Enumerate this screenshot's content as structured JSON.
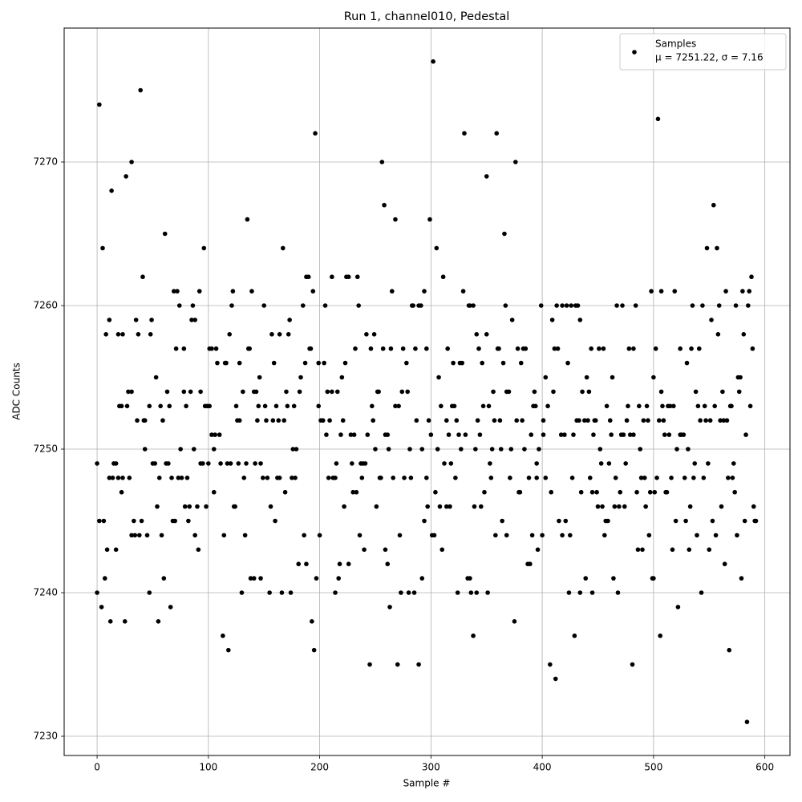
{
  "chart_data": {
    "type": "scatter",
    "title": "Run 1, channel010, Pedestal",
    "x_label": "Sample #",
    "y_label": "ADC Counts",
    "xlim": [
      -29.6,
      622.6
    ],
    "ylim": [
      7228.66,
      7279.33
    ],
    "xticks": [
      0,
      100,
      200,
      300,
      400,
      500,
      600
    ],
    "yticks": [
      7230,
      7240,
      7250,
      7260,
      7270
    ],
    "grid": true,
    "legend_position": "upper right",
    "legend_note": "μ = 7251.22, σ = 7.16",
    "series": [
      {
        "name": "Samples",
        "color": "#000000",
        "x": [
          0,
          0,
          2,
          2,
          4,
          5,
          6,
          7,
          8,
          9,
          11,
          11,
          12,
          13,
          14,
          15,
          17,
          17,
          19,
          19,
          20,
          22,
          22,
          23,
          23,
          25,
          26,
          27,
          28,
          29,
          31,
          31,
          31,
          33,
          34,
          35,
          36,
          37,
          38,
          39,
          40,
          41,
          42,
          43,
          43,
          45,
          47,
          47,
          48,
          49,
          50,
          52,
          53,
          54,
          55,
          56,
          57,
          58,
          59,
          60,
          61,
          62,
          63,
          64,
          65,
          66,
          67,
          68,
          69,
          70,
          71,
          72,
          73,
          74,
          75,
          76,
          78,
          78,
          79,
          80,
          81,
          82,
          83,
          84,
          85,
          86,
          87,
          88,
          88,
          90,
          91,
          92,
          93,
          93,
          95,
          96,
          97,
          98,
          99,
          100,
          101,
          101,
          103,
          103,
          105,
          105,
          106,
          107,
          108,
          110,
          111,
          113,
          114,
          115,
          116,
          117,
          118,
          119,
          120,
          121,
          122,
          123,
          124,
          125,
          126,
          127,
          128,
          128,
          130,
          131,
          132,
          133,
          134,
          135,
          136,
          137,
          138,
          139,
          141,
          141,
          142,
          143,
          144,
          145,
          146,
          147,
          147,
          149,
          150,
          151,
          152,
          153,
          155,
          156,
          157,
          158,
          159,
          160,
          161,
          162,
          163,
          164,
          164,
          166,
          167,
          168,
          169,
          170,
          171,
          172,
          173,
          174,
          175,
          176,
          177,
          178,
          179,
          181,
          182,
          183,
          185,
          186,
          187,
          188,
          188,
          190,
          191,
          192,
          193,
          194,
          195,
          196,
          197,
          199,
          199,
          200,
          201,
          203,
          204,
          205,
          206,
          207,
          208,
          209,
          211,
          211,
          212,
          214,
          214,
          215,
          216,
          217,
          218,
          219,
          220,
          221,
          222,
          223,
          224,
          226,
          226,
          228,
          229,
          230,
          231,
          232,
          233,
          234,
          235,
          236,
          237,
          238,
          239,
          240,
          241,
          242,
          243,
          245,
          246,
          247,
          248,
          249,
          250,
          251,
          252,
          253,
          254,
          255,
          256,
          257,
          258,
          259,
          259,
          261,
          261,
          262,
          263,
          264,
          265,
          266,
          268,
          268,
          270,
          271,
          272,
          273,
          274,
          275,
          276,
          278,
          279,
          280,
          281,
          282,
          283,
          284,
          285,
          286,
          287,
          289,
          289,
          291,
          292,
          292,
          294,
          294,
          296,
          296,
          297,
          298,
          299,
          300,
          301,
          302,
          303,
          304,
          305,
          306,
          307,
          308,
          309,
          310,
          311,
          312,
          314,
          314,
          315,
          316,
          317,
          318,
          319,
          320,
          321,
          322,
          323,
          324,
          325,
          326,
          327,
          328,
          329,
          330,
          331,
          333,
          334,
          335,
          335,
          336,
          338,
          338,
          339,
          340,
          341,
          341,
          342,
          343,
          344,
          345,
          346,
          347,
          348,
          350,
          350,
          351,
          352,
          353,
          354,
          355,
          356,
          357,
          358,
          359,
          360,
          361,
          362,
          363,
          364,
          365,
          366,
          367,
          368,
          368,
          370,
          371,
          372,
          373,
          375,
          376,
          377,
          378,
          379,
          380,
          381,
          382,
          383,
          384,
          385,
          387,
          388,
          389,
          390,
          391,
          392,
          393,
          394,
          395,
          395,
          396,
          397,
          399,
          400,
          401,
          401,
          403,
          403,
          405,
          407,
          408,
          409,
          410,
          411,
          412,
          413,
          414,
          415,
          417,
          418,
          418,
          420,
          421,
          422,
          423,
          424,
          425,
          426,
          427,
          428,
          429,
          430,
          431,
          432,
          433,
          434,
          434,
          435,
          436,
          438,
          439,
          440,
          441,
          442,
          443,
          444,
          445,
          445,
          446,
          447,
          448,
          449,
          450,
          451,
          452,
          453,
          454,
          455,
          456,
          457,
          458,
          459,
          460,
          461,
          462,
          463,
          464,
          465,
          466,
          467,
          468,
          469,
          470,
          471,
          472,
          473,
          474,
          475,
          476,
          477,
          478,
          479,
          481,
          482,
          482,
          484,
          485,
          486,
          487,
          488,
          489,
          490,
          491,
          492,
          493,
          494,
          495,
          496,
          497,
          498,
          499,
          500,
          500,
          501,
          502,
          503,
          504,
          505,
          506,
          507,
          507,
          508,
          509,
          510,
          511,
          512,
          513,
          514,
          515,
          516,
          517,
          518,
          519,
          520,
          521,
          522,
          524,
          524,
          525,
          527,
          528,
          529,
          530,
          531,
          532,
          533,
          534,
          535,
          536,
          537,
          538,
          539,
          540,
          541,
          542,
          543,
          544,
          545,
          546,
          547,
          548,
          549,
          550,
          551,
          552,
          553,
          554,
          555,
          556,
          557,
          558,
          559,
          560,
          561,
          562,
          563,
          564,
          565,
          566,
          567,
          568,
          569,
          570,
          571,
          572,
          573,
          574,
          575,
          576,
          577,
          578,
          579,
          580,
          581,
          582,
          583,
          584,
          585,
          586,
          587,
          588,
          589,
          590,
          591,
          592
        ],
        "values": [
          7240,
          7249,
          7274,
          7245,
          7239,
          7264,
          7245,
          7241,
          7258,
          7243,
          7259,
          7248,
          7238,
          7268,
          7248,
          7249,
          7249,
          7243,
          7258,
          7248,
          7253,
          7247,
          7253,
          7248,
          7258,
          7238,
          7269,
          7253,
          7254,
          7248,
          7270,
          7254,
          7244,
          7245,
          7244,
          7259,
          7252,
          7258,
          7244,
          7275,
          7245,
          7262,
          7252,
          7252,
          7250,
          7244,
          7240,
          7253,
          7258,
          7259,
          7249,
          7249,
          7255,
          7246,
          7238,
          7248,
          7253,
          7244,
          7252,
          7241,
          7265,
          7249,
          7254,
          7249,
          7253,
          7239,
          7248,
          7245,
          7261,
          7245,
          7257,
          7261,
          7248,
          7260,
          7250,
          7248,
          7254,
          7257,
          7246,
          7253,
          7248,
          7245,
          7246,
          7254,
          7259,
          7260,
          7250,
          7259,
          7244,
          7246,
          7243,
          7261,
          7254,
          7249,
          7249,
          7264,
          7253,
          7246,
          7253,
          7249,
          7253,
          7257,
          7257,
          7251,
          7247,
          7250,
          7251,
          7257,
          7256,
          7251,
          7249,
          7237,
          7244,
          7256,
          7256,
          7249,
          7236,
          7258,
          7249,
          7260,
          7261,
          7246,
          7246,
          7253,
          7252,
          7249,
          7256,
          7252,
          7240,
          7254,
          7248,
          7244,
          7249,
          7266,
          7257,
          7257,
          7241,
          7261,
          7241,
          7254,
          7249,
          7254,
          7252,
          7253,
          7255,
          7249,
          7241,
          7248,
          7260,
          7253,
          7252,
          7248,
          7240,
          7246,
          7258,
          7252,
          7256,
          7245,
          7253,
          7248,
          7252,
          7258,
          7248,
          7240,
          7264,
          7252,
          7247,
          7254,
          7253,
          7258,
          7259,
          7240,
          7248,
          7250,
          7253,
          7248,
          7250,
          7242,
          7254,
          7255,
          7260,
          7244,
          7256,
          7242,
          7262,
          7262,
          7257,
          7257,
          7238,
          7261,
          7236,
          7272,
          7241,
          7253,
          7256,
          7244,
          7252,
          7252,
          7256,
          7260,
          7251,
          7254,
          7248,
          7252,
          7262,
          7254,
          7248,
          7248,
          7240,
          7249,
          7254,
          7241,
          7242,
          7251,
          7255,
          7252,
          7246,
          7256,
          7262,
          7242,
          7262,
          7251,
          7249,
          7247,
          7251,
          7257,
          7247,
          7262,
          7260,
          7244,
          7249,
          7248,
          7249,
          7243,
          7249,
          7258,
          7251,
          7235,
          7257,
          7253,
          7252,
          7258,
          7250,
          7246,
          7254,
          7254,
          7248,
          7248,
          7270,
          7257,
          7267,
          7243,
          7251,
          7242,
          7251,
          7250,
          7239,
          7257,
          7261,
          7248,
          7266,
          7253,
          7235,
          7253,
          7244,
          7240,
          7254,
          7257,
          7248,
          7256,
          7254,
          7240,
          7250,
          7248,
          7260,
          7260,
          7240,
          7257,
          7252,
          7235,
          7260,
          7260,
          7250,
          7241,
          7245,
          7261,
          7257,
          7248,
          7246,
          7252,
          7266,
          7251,
          7244,
          7277,
          7244,
          7247,
          7264,
          7250,
          7255,
          7246,
          7253,
          7243,
          7262,
          7249,
          7252,
          7246,
          7257,
          7251,
          7246,
          7249,
          7253,
          7256,
          7253,
          7248,
          7252,
          7240,
          7251,
          7256,
          7250,
          7256,
          7261,
          7272,
          7251,
          7241,
          7260,
          7241,
          7260,
          7240,
          7260,
          7237,
          7246,
          7250,
          7240,
          7258,
          7252,
          7257,
          7251,
          7246,
          7256,
          7253,
          7247,
          7269,
          7258,
          7240,
          7253,
          7249,
          7248,
          7250,
          7254,
          7252,
          7244,
          7272,
          7257,
          7257,
          7252,
          7250,
          7245,
          7256,
          7265,
          7260,
          7244,
          7254,
          7254,
          7248,
          7250,
          7259,
          7238,
          7270,
          7252,
          7257,
          7247,
          7247,
          7256,
          7252,
          7257,
          7250,
          7257,
          7242,
          7248,
          7242,
          7251,
          7244,
          7253,
          7254,
          7253,
          7249,
          7248,
          7243,
          7250,
          7260,
          7244,
          7252,
          7251,
          7255,
          7248,
          7253,
          7235,
          7247,
          7259,
          7254,
          7257,
          7234,
          7260,
          7257,
          7245,
          7251,
          7244,
          7260,
          7251,
          7245,
          7260,
          7256,
          7240,
          7244,
          7260,
          7248,
          7251,
          7237,
          7260,
          7252,
          7260,
          7252,
          7240,
          7259,
          7247,
          7254,
          7252,
          7241,
          7255,
          7252,
          7254,
          7248,
          7257,
          7247,
          7240,
          7251,
          7252,
          7252,
          7247,
          7246,
          7257,
          7250,
          7249,
          7246,
          7257,
          7244,
          7245,
          7253,
          7245,
          7249,
          7252,
          7251,
          7255,
          7241,
          7246,
          7248,
          7260,
          7240,
          7246,
          7247,
          7251,
          7260,
          7251,
          7246,
          7249,
          7252,
          7253,
          7257,
          7251,
          7235,
          7257,
          7251,
          7260,
          7247,
          7243,
          7253,
          7250,
          7248,
          7243,
          7252,
          7248,
          7246,
          7253,
          7252,
          7244,
          7247,
          7261,
          7241,
          7255,
          7241,
          7247,
          7257,
          7248,
          7273,
          7252,
          7237,
          7261,
          7254,
          7253,
          7252,
          7251,
          7247,
          7247,
          7253,
          7251,
          7253,
          7248,
          7243,
          7253,
          7261,
          7245,
          7250,
          7239,
          7251,
          7257,
          7251,
          7251,
          7248,
          7245,
          7256,
          7250,
          7243,
          7246,
          7257,
          7260,
          7248,
          7249,
          7254,
          7244,
          7253,
          7257,
          7252,
          7240,
          7260,
          7248,
          7253,
          7252,
          7264,
          7249,
          7243,
          7252,
          7259,
          7245,
          7267,
          7253,
          7244,
          7264,
          7258,
          7260,
          7252,
          7246,
          7254,
          7252,
          7242,
          7261,
          7252,
          7248,
          7236,
          7253,
          7253,
          7248,
          7249,
          7247,
          7260,
          7244,
          7255,
          7254,
          7255,
          7241,
          7261,
          7258,
          7245,
          7251,
          7231,
          7260,
          7261,
          7253,
          7262,
          7257,
          7246,
          7245,
          7245
        ]
      }
    ]
  }
}
